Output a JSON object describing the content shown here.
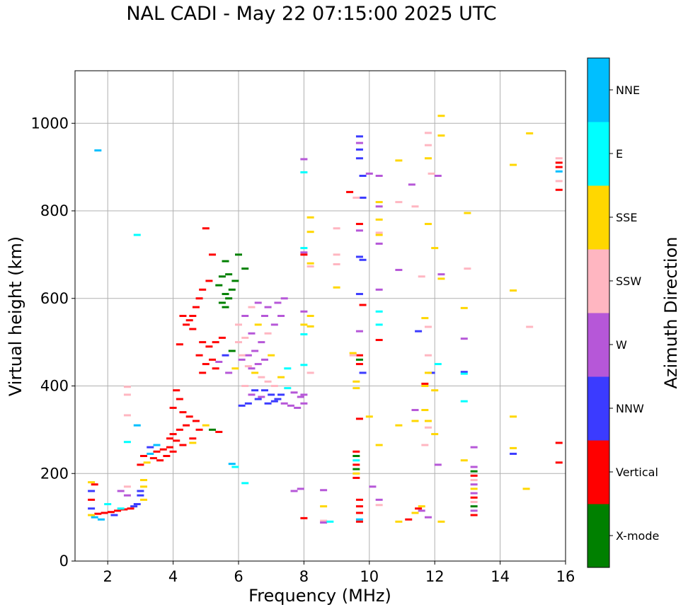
{
  "chart_data": {
    "type": "scatter",
    "title": "NAL CADI - May 22 07:15:00 2025 UTC",
    "xlabel": "Frequency (MHz)",
    "ylabel": "Virtual height (km)",
    "xlim": [
      1,
      16
    ],
    "ylim": [
      0,
      1120
    ],
    "xticks": [
      2,
      4,
      6,
      8,
      10,
      12,
      14,
      16
    ],
    "yticks": [
      0,
      200,
      400,
      600,
      800,
      1000
    ],
    "grid": true,
    "colorbar": {
      "label": "Azimuth Direction",
      "categories": [
        {
          "name": "X-mode",
          "color": "#008000"
        },
        {
          "name": "Vertical",
          "color": "#ff0000"
        },
        {
          "name": "NNW",
          "color": "#3b3bff"
        },
        {
          "name": "W",
          "color": "#b657d8"
        },
        {
          "name": "SSW",
          "color": "#ffb6c1"
        },
        {
          "name": "SSE",
          "color": "#ffd700"
        },
        {
          "name": "E",
          "color": "#00ffff"
        },
        {
          "name": "NNE",
          "color": "#00bfff"
        }
      ]
    },
    "points": [
      [
        1.7,
        938,
        "NNE"
      ],
      [
        2.9,
        745,
        "E"
      ],
      [
        5.0,
        760,
        "Vertical"
      ],
      [
        5.2,
        700,
        "Vertical"
      ],
      [
        5.6,
        685,
        "X-mode"
      ],
      [
        6.0,
        700,
        "X-mode"
      ],
      [
        6.2,
        668,
        "X-mode"
      ],
      [
        5.7,
        655,
        "X-mode"
      ],
      [
        5.5,
        650,
        "X-mode"
      ],
      [
        5.9,
        640,
        "X-mode"
      ],
      [
        5.4,
        630,
        "X-mode"
      ],
      [
        5.8,
        620,
        "X-mode"
      ],
      [
        5.6,
        610,
        "X-mode"
      ],
      [
        5.7,
        600,
        "X-mode"
      ],
      [
        5.5,
        590,
        "X-mode"
      ],
      [
        5.6,
        580,
        "X-mode"
      ],
      [
        5.1,
        640,
        "Vertical"
      ],
      [
        4.9,
        620,
        "Vertical"
      ],
      [
        4.8,
        600,
        "Vertical"
      ],
      [
        4.7,
        580,
        "Vertical"
      ],
      [
        4.6,
        560,
        "Vertical"
      ],
      [
        4.5,
        550,
        "Vertical"
      ],
      [
        4.4,
        540,
        "Vertical"
      ],
      [
        4.3,
        560,
        "Vertical"
      ],
      [
        4.6,
        530,
        "Vertical"
      ],
      [
        4.9,
        500,
        "Vertical"
      ],
      [
        4.2,
        495,
        "Vertical"
      ],
      [
        5.1,
        490,
        "Vertical"
      ],
      [
        5.3,
        500,
        "Vertical"
      ],
      [
        5.5,
        510,
        "Vertical"
      ],
      [
        4.8,
        470,
        "Vertical"
      ],
      [
        5.2,
        460,
        "Vertical"
      ],
      [
        5.6,
        470,
        "NNW"
      ],
      [
        5.4,
        455,
        "W"
      ],
      [
        5.0,
        450,
        "Vertical"
      ],
      [
        5.8,
        480,
        "X-mode"
      ],
      [
        4.9,
        430,
        "Vertical"
      ],
      [
        5.3,
        440,
        "Vertical"
      ],
      [
        5.7,
        430,
        "W"
      ],
      [
        5.9,
        440,
        "SSE"
      ],
      [
        6.1,
        460,
        "W"
      ],
      [
        6.3,
        470,
        "W"
      ],
      [
        6.5,
        480,
        "W"
      ],
      [
        6.7,
        500,
        "W"
      ],
      [
        6.9,
        520,
        "SSW"
      ],
      [
        7.1,
        540,
        "W"
      ],
      [
        7.3,
        560,
        "W"
      ],
      [
        6.8,
        560,
        "W"
      ],
      [
        6.6,
        540,
        "SSE"
      ],
      [
        6.4,
        520,
        "W"
      ],
      [
        6.2,
        510,
        "SSW"
      ],
      [
        6.0,
        500,
        "SSW"
      ],
      [
        6.1,
        470,
        "SSW"
      ],
      [
        6.3,
        445,
        "SSW"
      ],
      [
        6.5,
        430,
        "SSE"
      ],
      [
        6.7,
        420,
        "SSW"
      ],
      [
        6.9,
        410,
        "SSW"
      ],
      [
        7.1,
        400,
        "SSW"
      ],
      [
        7.3,
        420,
        "SSE"
      ],
      [
        7.5,
        440,
        "E"
      ],
      [
        6.6,
        590,
        "W"
      ],
      [
        6.9,
        580,
        "W"
      ],
      [
        7.2,
        590,
        "W"
      ],
      [
        7.4,
        600,
        "W"
      ],
      [
        6.4,
        580,
        "SSW"
      ],
      [
        6.2,
        560,
        "W"
      ],
      [
        6.0,
        540,
        "SSW"
      ],
      [
        7.0,
        470,
        "SSE"
      ],
      [
        6.8,
        460,
        "W"
      ],
      [
        6.6,
        450,
        "W"
      ],
      [
        6.4,
        440,
        "W"
      ],
      [
        6.2,
        400,
        "SSW"
      ],
      [
        6.4,
        380,
        "W"
      ],
      [
        6.6,
        370,
        "NNW"
      ],
      [
        6.8,
        390,
        "NNW"
      ],
      [
        7.0,
        380,
        "NNW"
      ],
      [
        7.2,
        370,
        "NNW"
      ],
      [
        7.4,
        360,
        "W"
      ],
      [
        7.6,
        355,
        "W"
      ],
      [
        7.8,
        350,
        "W"
      ],
      [
        8.0,
        360,
        "W"
      ],
      [
        7.9,
        375,
        "W"
      ],
      [
        7.7,
        385,
        "W"
      ],
      [
        7.5,
        395,
        "E"
      ],
      [
        7.3,
        380,
        "NNW"
      ],
      [
        7.1,
        365,
        "NNW"
      ],
      [
        6.9,
        360,
        "NNW"
      ],
      [
        6.7,
        375,
        "W"
      ],
      [
        6.5,
        390,
        "NNW"
      ],
      [
        6.3,
        360,
        "NNW"
      ],
      [
        6.1,
        355,
        "NNW"
      ],
      [
        8.0,
        380,
        "W"
      ],
      [
        4.1,
        390,
        "Vertical"
      ],
      [
        4.2,
        370,
        "Vertical"
      ],
      [
        4.0,
        350,
        "Vertical"
      ],
      [
        4.3,
        340,
        "Vertical"
      ],
      [
        4.5,
        330,
        "Vertical"
      ],
      [
        4.7,
        320,
        "Vertical"
      ],
      [
        4.4,
        310,
        "Vertical"
      ],
      [
        4.2,
        300,
        "Vertical"
      ],
      [
        4.0,
        290,
        "Vertical"
      ],
      [
        3.9,
        280,
        "Vertical"
      ],
      [
        4.1,
        275,
        "Vertical"
      ],
      [
        4.3,
        265,
        "Vertical"
      ],
      [
        4.6,
        280,
        "Vertical"
      ],
      [
        4.8,
        300,
        "Vertical"
      ],
      [
        5.0,
        310,
        "SSE"
      ],
      [
        5.2,
        300,
        "X-mode"
      ],
      [
        5.4,
        295,
        "Vertical"
      ],
      [
        3.9,
        260,
        "Vertical"
      ],
      [
        3.7,
        255,
        "Vertical"
      ],
      [
        3.5,
        250,
        "Vertical"
      ],
      [
        3.3,
        245,
        "NNE"
      ],
      [
        3.1,
        240,
        "Vertical"
      ],
      [
        3.4,
        235,
        "Vertical"
      ],
      [
        3.6,
        230,
        "Vertical"
      ],
      [
        3.8,
        240,
        "Vertical"
      ],
      [
        4.0,
        250,
        "Vertical"
      ],
      [
        3.2,
        225,
        "SSE"
      ],
      [
        3.0,
        220,
        "Vertical"
      ],
      [
        3.5,
        265,
        "NNE"
      ],
      [
        3.3,
        260,
        "NNW"
      ],
      [
        4.6,
        270,
        "SSE"
      ],
      [
        3.1,
        185,
        "SSE"
      ],
      [
        3.1,
        170,
        "SSE"
      ],
      [
        3.0,
        160,
        "NNW"
      ],
      [
        3.0,
        150,
        "NNW"
      ],
      [
        3.1,
        140,
        "SSE"
      ],
      [
        2.9,
        130,
        "NNW"
      ],
      [
        2.8,
        125,
        "NNW"
      ],
      [
        2.7,
        120,
        "Vertical"
      ],
      [
        2.5,
        118,
        "Vertical"
      ],
      [
        2.3,
        115,
        "Vertical"
      ],
      [
        2.1,
        112,
        "Vertical"
      ],
      [
        1.9,
        110,
        "Vertical"
      ],
      [
        1.7,
        108,
        "Vertical"
      ],
      [
        1.5,
        105,
        "SSE"
      ],
      [
        1.6,
        100,
        "NNE"
      ],
      [
        1.8,
        95,
        "NNE"
      ],
      [
        1.5,
        120,
        "NNW"
      ],
      [
        1.5,
        140,
        "Vertical"
      ],
      [
        1.5,
        160,
        "NNW"
      ],
      [
        1.5,
        180,
        "SSE"
      ],
      [
        1.6,
        175,
        "Vertical"
      ],
      [
        2.4,
        120,
        "E"
      ],
      [
        2.2,
        105,
        "NNW"
      ],
      [
        2.6,
        170,
        "SSW"
      ],
      [
        2.4,
        160,
        "W"
      ],
      [
        2.6,
        150,
        "W"
      ],
      [
        2.0,
        130,
        "E"
      ],
      [
        9.7,
        470,
        "Vertical"
      ],
      [
        9.7,
        460,
        "X-mode"
      ],
      [
        9.7,
        450,
        "Vertical"
      ],
      [
        9.6,
        410,
        "SSE"
      ],
      [
        9.6,
        395,
        "SSE"
      ],
      [
        9.7,
        325,
        "Vertical"
      ],
      [
        9.6,
        250,
        "Vertical"
      ],
      [
        9.6,
        240,
        "X-mode"
      ],
      [
        9.6,
        230,
        "E"
      ],
      [
        9.6,
        220,
        "Vertical"
      ],
      [
        9.6,
        210,
        "X-mode"
      ],
      [
        9.6,
        200,
        "SSE"
      ],
      [
        9.6,
        190,
        "Vertical"
      ],
      [
        9.7,
        140,
        "Vertical"
      ],
      [
        9.7,
        125,
        "Vertical"
      ],
      [
        9.7,
        110,
        "Vertical"
      ],
      [
        9.7,
        95,
        "NNE"
      ],
      [
        9.7,
        90,
        "Vertical"
      ],
      [
        9.7,
        970,
        "NNW"
      ],
      [
        9.7,
        955,
        "W"
      ],
      [
        9.7,
        940,
        "NNW"
      ],
      [
        9.7,
        920,
        "NNW"
      ],
      [
        9.8,
        880,
        "NNW"
      ],
      [
        9.8,
        830,
        "NNW"
      ],
      [
        9.6,
        830,
        "SSW"
      ],
      [
        9.4,
        843,
        "Vertical"
      ],
      [
        9.7,
        770,
        "Vertical"
      ],
      [
        9.7,
        755,
        "W"
      ],
      [
        9.7,
        695,
        "NNW"
      ],
      [
        9.8,
        688,
        "NNW"
      ],
      [
        9.7,
        610,
        "NNW"
      ],
      [
        9.8,
        585,
        "Vertical"
      ],
      [
        9.7,
        525,
        "W"
      ],
      [
        9.8,
        430,
        "NNW"
      ],
      [
        10.3,
        820,
        "SSE"
      ],
      [
        10.3,
        810,
        "W"
      ],
      [
        10.3,
        780,
        "SSE"
      ],
      [
        10.3,
        750,
        "SSW"
      ],
      [
        10.3,
        745,
        "SSE"
      ],
      [
        10.3,
        725,
        "W"
      ],
      [
        10.3,
        620,
        "W"
      ],
      [
        10.3,
        570,
        "E"
      ],
      [
        10.3,
        540,
        "E"
      ],
      [
        10.3,
        505,
        "Vertical"
      ],
      [
        10.0,
        885,
        "W"
      ],
      [
        10.3,
        880,
        "W"
      ],
      [
        10.0,
        330,
        "SSE"
      ],
      [
        10.3,
        265,
        "SSE"
      ],
      [
        10.1,
        170,
        "W"
      ],
      [
        10.3,
        140,
        "W"
      ],
      [
        10.3,
        128,
        "SSW"
      ],
      [
        10.9,
        90,
        "SSE"
      ],
      [
        11.2,
        95,
        "Vertical"
      ],
      [
        11.4,
        110,
        "SSE"
      ],
      [
        11.6,
        115,
        "W"
      ],
      [
        11.6,
        125,
        "SSE"
      ],
      [
        11.8,
        100,
        "W"
      ],
      [
        12.2,
        90,
        "SSE"
      ],
      [
        11.7,
        265,
        "SSW"
      ],
      [
        11.8,
        305,
        "SSW"
      ],
      [
        12.0,
        290,
        "SSE"
      ],
      [
        11.8,
        320,
        "SSE"
      ],
      [
        11.7,
        345,
        "SSE"
      ],
      [
        11.4,
        345,
        "W"
      ],
      [
        10.9,
        310,
        "SSE"
      ],
      [
        11.4,
        320,
        "SSE"
      ],
      [
        11.7,
        405,
        "Vertical"
      ],
      [
        11.7,
        400,
        "SSE"
      ],
      [
        11.9,
        430,
        "NNW"
      ],
      [
        12.1,
        450,
        "E"
      ],
      [
        12.0,
        390,
        "SSE"
      ],
      [
        11.8,
        470,
        "SSW"
      ],
      [
        11.8,
        430,
        "SSE"
      ],
      [
        11.5,
        525,
        "NNW"
      ],
      [
        11.8,
        535,
        "SSW"
      ],
      [
        11.7,
        555,
        "SSE"
      ],
      [
        11.6,
        650,
        "SSW"
      ],
      [
        12.0,
        715,
        "SSE"
      ],
      [
        12.2,
        655,
        "W"
      ],
      [
        12.2,
        645,
        "SSE"
      ],
      [
        11.8,
        770,
        "SSE"
      ],
      [
        11.4,
        810,
        "SSW"
      ],
      [
        10.9,
        820,
        "SSW"
      ],
      [
        11.3,
        860,
        "W"
      ],
      [
        10.9,
        665,
        "W"
      ],
      [
        11.8,
        920,
        "SSE"
      ],
      [
        11.9,
        885,
        "SSW"
      ],
      [
        12.1,
        880,
        "W"
      ],
      [
        10.9,
        915,
        "SSE"
      ],
      [
        11.8,
        950,
        "SSW"
      ],
      [
        11.8,
        978,
        "SSW"
      ],
      [
        12.2,
        972,
        "SSE"
      ],
      [
        12.2,
        1017,
        "SSE"
      ],
      [
        12.1,
        220,
        "W"
      ],
      [
        11.5,
        120,
        "Vertical"
      ],
      [
        12.9,
        230,
        "SSE"
      ],
      [
        13.0,
        795,
        "SSE"
      ],
      [
        13.0,
        668,
        "SSW"
      ],
      [
        12.9,
        578,
        "SSE"
      ],
      [
        12.9,
        508,
        "W"
      ],
      [
        12.9,
        432,
        "NNW"
      ],
      [
        12.9,
        428,
        "E"
      ],
      [
        12.9,
        365,
        "E"
      ],
      [
        13.2,
        260,
        "W"
      ],
      [
        13.2,
        215,
        "W"
      ],
      [
        13.2,
        205,
        "X-mode"
      ],
      [
        13.2,
        195,
        "Vertical"
      ],
      [
        13.2,
        185,
        "SSW"
      ],
      [
        13.2,
        175,
        "W"
      ],
      [
        13.2,
        165,
        "SSE"
      ],
      [
        13.2,
        155,
        "W"
      ],
      [
        13.2,
        145,
        "Vertical"
      ],
      [
        13.2,
        135,
        "SSW"
      ],
      [
        13.2,
        125,
        "X-mode"
      ],
      [
        13.2,
        115,
        "W"
      ],
      [
        13.2,
        105,
        "Vertical"
      ],
      [
        14.4,
        905,
        "SSE"
      ],
      [
        14.4,
        618,
        "SSE"
      ],
      [
        14.4,
        330,
        "SSE"
      ],
      [
        14.4,
        258,
        "SSE"
      ],
      [
        14.4,
        245,
        "NNW"
      ],
      [
        14.8,
        165,
        "SSE"
      ],
      [
        14.9,
        535,
        "SSW"
      ],
      [
        14.9,
        977,
        "SSE"
      ],
      [
        15.8,
        920,
        "SSW"
      ],
      [
        15.8,
        910,
        "Vertical"
      ],
      [
        15.8,
        900,
        "Vertical"
      ],
      [
        15.8,
        890,
        "NNE"
      ],
      [
        15.8,
        868,
        "SSW"
      ],
      [
        15.8,
        848,
        "Vertical"
      ],
      [
        15.8,
        270,
        "Vertical"
      ],
      [
        15.8,
        225,
        "Vertical"
      ],
      [
        8.0,
        918,
        "W"
      ],
      [
        8.0,
        888,
        "E"
      ],
      [
        8.2,
        785,
        "SSE"
      ],
      [
        8.2,
        752,
        "SSE"
      ],
      [
        8.0,
        715,
        "E"
      ],
      [
        8.0,
        705,
        "W"
      ],
      [
        8.0,
        700,
        "Vertical"
      ],
      [
        8.2,
        680,
        "SSE"
      ],
      [
        8.2,
        673,
        "SSW"
      ],
      [
        8.0,
        570,
        "W"
      ],
      [
        8.2,
        560,
        "SSE"
      ],
      [
        8.0,
        540,
        "SSE"
      ],
      [
        8.2,
        536,
        "SSE"
      ],
      [
        8.0,
        518,
        "E"
      ],
      [
        8.0,
        448,
        "E"
      ],
      [
        8.2,
        430,
        "SSW"
      ],
      [
        7.7,
        160,
        "W"
      ],
      [
        7.9,
        165,
        "W"
      ],
      [
        8.0,
        98,
        "Vertical"
      ],
      [
        8.6,
        92,
        "SSW"
      ],
      [
        8.6,
        88,
        "W"
      ],
      [
        8.8,
        90,
        "E"
      ],
      [
        8.6,
        125,
        "SSE"
      ],
      [
        8.6,
        162,
        "W"
      ],
      [
        9.0,
        625,
        "SSE"
      ],
      [
        9.0,
        700,
        "SSW"
      ],
      [
        9.0,
        678,
        "SSW"
      ],
      [
        9.0,
        760,
        "SSW"
      ],
      [
        9.5,
        475,
        "SSE"
      ],
      [
        9.5,
        470,
        "SSW"
      ],
      [
        6.2,
        178,
        "E"
      ],
      [
        5.9,
        215,
        "E"
      ],
      [
        5.8,
        222,
        "NNE"
      ],
      [
        2.9,
        310,
        "NNE"
      ],
      [
        2.6,
        333,
        "SSW"
      ],
      [
        2.6,
        272,
        "E"
      ],
      [
        2.6,
        380,
        "SSW"
      ],
      [
        2.6,
        398,
        "SSW"
      ]
    ]
  }
}
